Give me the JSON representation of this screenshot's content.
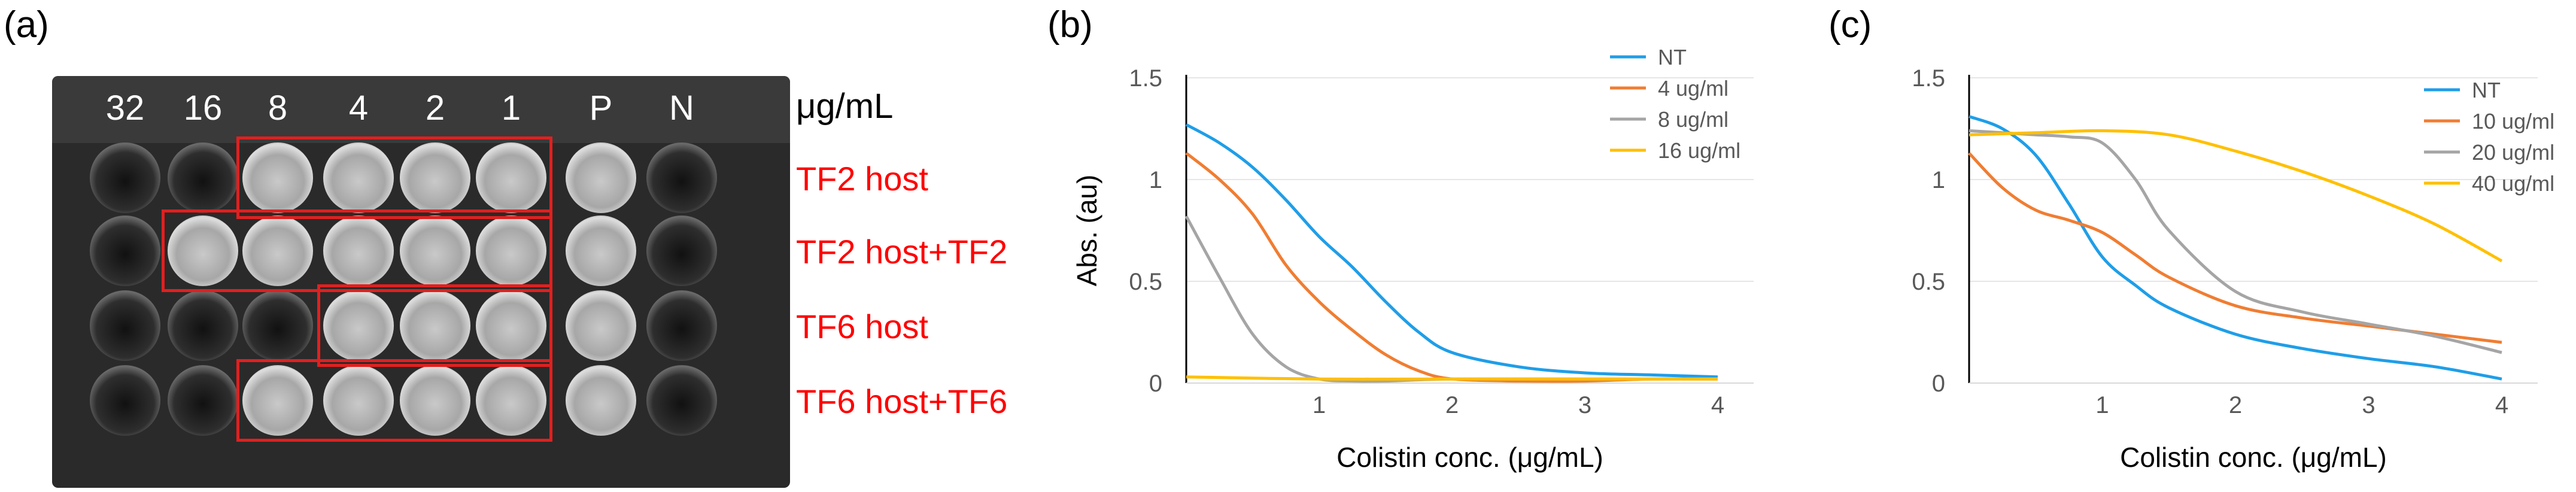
{
  "panel_labels": {
    "a": "(a)",
    "b": "(b)",
    "c": "(c)"
  },
  "plate": {
    "concentrations": [
      "32",
      "16",
      "8",
      "4",
      "2",
      "1",
      "P",
      "N"
    ],
    "unit": "μg/mL",
    "rows": [
      {
        "label": "TF2 host",
        "wells": [
          "dark",
          "dark",
          "light",
          "light",
          "light",
          "light",
          "light",
          "dark"
        ]
      },
      {
        "label": "TF2 host+TF2",
        "wells": [
          "dark",
          "light",
          "light",
          "light",
          "light",
          "light",
          "light",
          "dark"
        ]
      },
      {
        "label": "TF6 host",
        "wells": [
          "dark",
          "dark",
          "dark",
          "light",
          "light",
          "light",
          "light",
          "dark"
        ]
      },
      {
        "label": "TF6 host+TF6",
        "wells": [
          "dark",
          "dark",
          "light",
          "light",
          "light",
          "light",
          "light",
          "dark"
        ]
      }
    ]
  },
  "chart_data": [
    {
      "type": "line",
      "ylabel": "Abs. (au)",
      "xlabel": "Colistin conc. (μg/mL)",
      "xlim": [
        0,
        4
      ],
      "ylim": [
        0,
        1.5
      ],
      "xticks": [
        "1",
        "2",
        "3",
        "4"
      ],
      "yticks": [
        "0",
        "0.5",
        "1",
        "1.5"
      ],
      "legend_position": "top-right",
      "series": [
        {
          "name": "NT",
          "color": "#1f9ee8",
          "x": [
            0,
            0.25,
            0.5,
            0.75,
            1,
            1.25,
            1.5,
            1.75,
            2,
            2.5,
            3,
            3.5,
            4
          ],
          "y": [
            1.27,
            1.18,
            1.06,
            0.9,
            0.72,
            0.57,
            0.4,
            0.25,
            0.15,
            0.08,
            0.05,
            0.04,
            0.03
          ]
        },
        {
          "name": "4 ug/ml",
          "color": "#f07d32",
          "x": [
            0,
            0.25,
            0.5,
            0.75,
            1,
            1.25,
            1.5,
            1.75,
            2,
            2.5,
            3,
            3.5,
            4
          ],
          "y": [
            1.13,
            1.0,
            0.83,
            0.58,
            0.4,
            0.26,
            0.14,
            0.06,
            0.02,
            0.01,
            0.01,
            0.02,
            0.02
          ]
        },
        {
          "name": "8 ug/ml",
          "color": "#a5a5a5",
          "x": [
            0,
            0.25,
            0.5,
            0.75,
            1,
            1.25,
            1.5,
            2,
            3,
            4
          ],
          "y": [
            0.82,
            0.52,
            0.24,
            0.08,
            0.02,
            0.01,
            0.01,
            0.02,
            0.02,
            0.02
          ]
        },
        {
          "name": "16 ug/ml",
          "color": "#ffc000",
          "x": [
            0,
            1,
            2,
            3,
            4
          ],
          "y": [
            0.03,
            0.02,
            0.02,
            0.02,
            0.02
          ]
        }
      ]
    },
    {
      "type": "line",
      "ylabel": "",
      "xlabel": "Colistin conc. (μg/mL)",
      "xlim": [
        0,
        4
      ],
      "ylim": [
        0,
        1.5
      ],
      "xticks": [
        "1",
        "2",
        "3",
        "4"
      ],
      "yticks": [
        "0",
        "0.5",
        "1",
        "1.5"
      ],
      "legend_position": "top-right",
      "series": [
        {
          "name": "NT",
          "color": "#1f9ee8",
          "x": [
            0,
            0.25,
            0.5,
            0.75,
            1,
            1.25,
            1.5,
            2,
            2.5,
            3,
            3.5,
            4
          ],
          "y": [
            1.31,
            1.25,
            1.12,
            0.88,
            0.62,
            0.48,
            0.37,
            0.24,
            0.17,
            0.12,
            0.08,
            0.02
          ]
        },
        {
          "name": "10 ug/ml",
          "color": "#f07d32",
          "x": [
            0,
            0.25,
            0.5,
            0.75,
            1,
            1.25,
            1.5,
            2,
            2.5,
            3,
            3.5,
            4
          ],
          "y": [
            1.13,
            0.96,
            0.85,
            0.8,
            0.74,
            0.63,
            0.52,
            0.38,
            0.32,
            0.28,
            0.24,
            0.2
          ]
        },
        {
          "name": "20 ug/ml",
          "color": "#a5a5a5",
          "x": [
            0,
            0.25,
            0.5,
            0.75,
            1,
            1.25,
            1.5,
            2,
            2.5,
            3,
            3.5,
            4
          ],
          "y": [
            1.24,
            1.23,
            1.22,
            1.21,
            1.18,
            1.0,
            0.75,
            0.45,
            0.35,
            0.29,
            0.23,
            0.15
          ]
        },
        {
          "name": "40 ug/ml",
          "color": "#ffc000",
          "x": [
            0,
            0.5,
            1,
            1.5,
            2,
            2.5,
            3,
            3.5,
            4
          ],
          "y": [
            1.22,
            1.23,
            1.24,
            1.22,
            1.14,
            1.04,
            0.92,
            0.78,
            0.6
          ]
        }
      ]
    }
  ]
}
